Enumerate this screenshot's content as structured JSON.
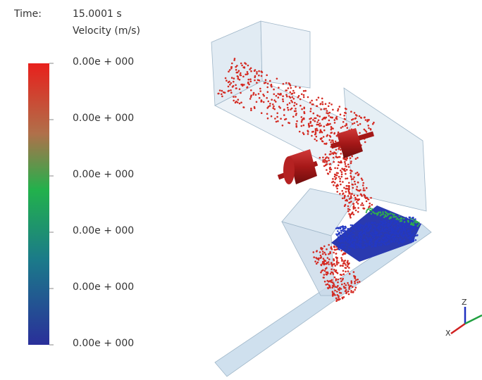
{
  "time_label": "Time:",
  "time_value": "15.0001 s",
  "legend": {
    "title": "Velocity (m/s)",
    "labels": [
      "0.00e + 000",
      "0.00e + 000",
      "0.00e + 000",
      "0.00e + 000",
      "0.00e + 000",
      "0.00e + 000"
    ]
  },
  "axes_triad": {
    "z": "Z",
    "x": "X"
  }
}
